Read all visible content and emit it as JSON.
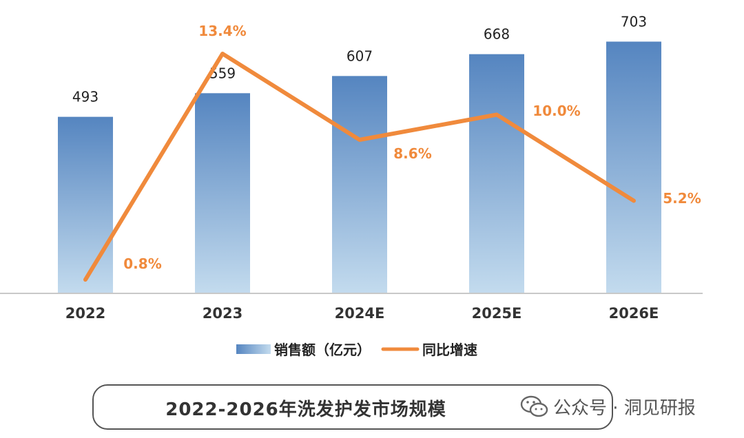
{
  "chart_data": {
    "type": "bar",
    "categories": [
      "2022",
      "2023",
      "2024E",
      "2025E",
      "2026E"
    ],
    "series": [
      {
        "name": "销售额（亿元）",
        "kind": "bar",
        "values": [
          493,
          559,
          607,
          668,
          703
        ],
        "labels": [
          "493",
          "559",
          "607",
          "668",
          "703"
        ]
      },
      {
        "name": "同比增速",
        "kind": "line",
        "values": [
          0.8,
          13.4,
          8.6,
          10.0,
          5.2
        ],
        "labels": [
          "0.8%",
          "13.4%",
          "8.6%",
          "10.0%",
          "5.2%"
        ]
      }
    ],
    "bar_ylim": [
      0,
      750
    ],
    "line_ylim": [
      0,
      14.5
    ],
    "colors": {
      "bar_top": "#5585c0",
      "bar_bottom": "#c3dbee",
      "line": "#f08a3c",
      "axis": "#c8c8c8"
    }
  },
  "title": "2022-2026年洗发护发市场规模",
  "watermark": {
    "icon": "wechat-icon",
    "text": "公众号 · 洞见研报"
  }
}
